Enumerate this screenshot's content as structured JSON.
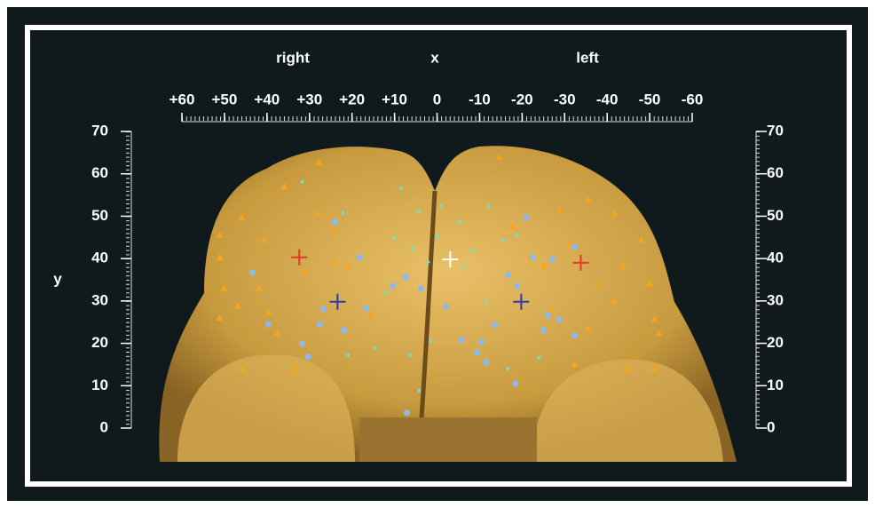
{
  "chart_data": {
    "type": "scatter",
    "xlabel": "x",
    "ylabel": "y",
    "annotations": [
      "right",
      "left"
    ],
    "xlim": [
      60,
      -60
    ],
    "ylim": [
      0,
      70
    ],
    "xticks": [
      {
        "value": 60,
        "label": "+60"
      },
      {
        "value": 50,
        "label": "+50"
      },
      {
        "value": 40,
        "label": "+40"
      },
      {
        "value": 30,
        "label": "+30"
      },
      {
        "value": 20,
        "label": "+20"
      },
      {
        "value": 10,
        "label": "+10"
      },
      0,
      -10,
      -20,
      -30,
      -40,
      -50,
      -60
    ],
    "yticks": [
      0,
      10,
      20,
      30,
      40,
      50,
      60,
      70
    ],
    "series": [
      {
        "marker": "triangle",
        "color": "#f7a51c",
        "x": [
          27.8,
          35.9,
          45.9,
          51.1,
          40.7,
          50.1,
          51.1,
          46.9,
          39.7,
          37.6,
          33.4,
          45.9,
          24,
          28.2,
          31.3,
          20.9,
          15.7,
          24,
          51.1,
          41.8,
          -14.6,
          -28.8,
          -35.5,
          -41.8,
          -48,
          -43.8,
          -50.1,
          -41.8,
          -51.1,
          -52.2,
          -35.5,
          -32.4,
          -44.9,
          -51.1,
          -21.9,
          -27.1,
          -25.1,
          -31.3,
          -37.6,
          -17.7
        ],
        "y": [
          62.7,
          57,
          49.7,
          45.5,
          44.4,
          32.9,
          26,
          28.7,
          27.3,
          22.4,
          14,
          14,
          46.5,
          50.7,
          37.1,
          38.2,
          26.6,
          39.2,
          40.3,
          32.9,
          63.9,
          51.4,
          53.9,
          50.7,
          44.4,
          38.2,
          34,
          29.8,
          25.6,
          22.4,
          23.5,
          15.1,
          14,
          14,
          40.3,
          27.7,
          38.2,
          43.4,
          34,
          47.6
        ]
      },
      {
        "marker": "circle",
        "color": "#8fb8ea",
        "x": [
          43.4,
          39.7,
          30.3,
          31.7,
          27.6,
          21.9,
          26.7,
          24,
          18.2,
          16.7,
          10.4,
          7.3,
          3.8,
          -2.1,
          7.1,
          -5.8,
          -10.4,
          -9.4,
          -11.5,
          -18.4,
          -13.6,
          -16.7,
          -18.8,
          -20.9,
          -25.1,
          -26.1,
          -27.1,
          -32.4,
          -32.4,
          -28.8,
          -22.5
        ],
        "y": [
          36.7,
          24.5,
          16.8,
          19.9,
          24.5,
          23.1,
          28.1,
          48.6,
          40.3,
          28.3,
          33.5,
          35.6,
          32.9,
          28.7,
          3.6,
          20.8,
          20.3,
          17.8,
          15.5,
          10.5,
          24.3,
          36.1,
          33.5,
          49.7,
          23.1,
          26.6,
          39.8,
          42.8,
          21.8,
          25.6,
          40.3
        ]
      },
      {
        "marker": "diamond",
        "color": "#6fe0cf",
        "x": [
          31.7,
          22.1,
          8.4,
          4.2,
          -1,
          -5.2,
          10,
          5.8,
          2.1,
          0,
          -6.3,
          -8.4,
          -12.1,
          -15.7,
          -18.8,
          4.2,
          1.5,
          6.3,
          14.6,
          20.9,
          -16.7,
          -24,
          -11.5,
          12.1
        ],
        "y": [
          58.1,
          50.7,
          56.6,
          51.2,
          52.4,
          48.6,
          44.9,
          42.3,
          39.2,
          45.1,
          38.2,
          41.9,
          52.4,
          44.4,
          45.5,
          8.8,
          20.5,
          17.2,
          18.9,
          17.2,
          14,
          16.6,
          29.8,
          31.9
        ]
      },
      {
        "marker": "cross",
        "color": "#e0392b",
        "x": [
          32.4,
          -33.8
        ],
        "y": [
          40.3,
          39
        ]
      },
      {
        "marker": "cross",
        "color": "#2e3ab0",
        "x": [
          23.4,
          -19.8
        ],
        "y": [
          29.8,
          29.8
        ]
      },
      {
        "marker": "cross",
        "color": "#ffffff",
        "x": [
          -3.1
        ],
        "y": [
          39.8
        ]
      }
    ]
  }
}
